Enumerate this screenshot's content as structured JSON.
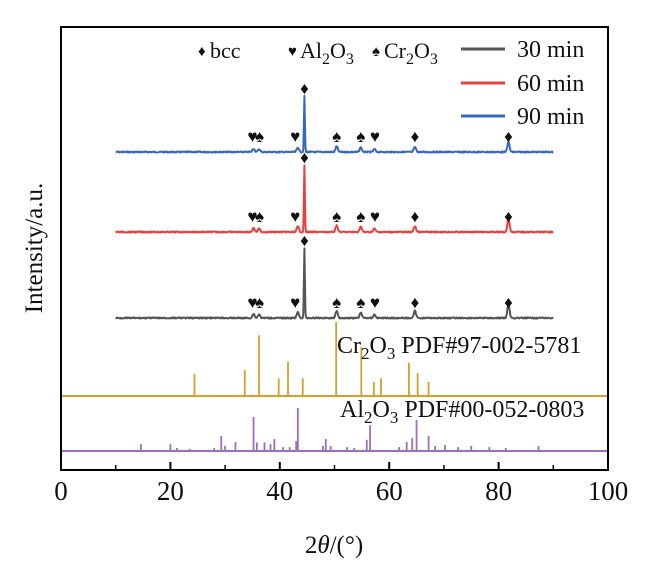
{
  "chart_data": {
    "type": "line",
    "title": "",
    "xlabel": "2θ/(°)",
    "ylabel": "Intensity/a.u.",
    "xlim": [
      0,
      100
    ],
    "xticks": [
      0,
      20,
      40,
      60,
      80,
      100
    ],
    "xminor_ticks": [
      10,
      30,
      50,
      70,
      90
    ],
    "yticks": [],
    "grid": false,
    "legend": {
      "placement": "top-right",
      "entries": [
        {
          "label": "30 min",
          "color": "#555555"
        },
        {
          "label": "60 min",
          "color": "#e8413d"
        },
        {
          "label": "90 min",
          "color": "#3569be"
        }
      ]
    },
    "phase_legend": [
      {
        "symbol": "♦",
        "label": "bcc"
      },
      {
        "symbol": "♥",
        "label": "Al",
        "sub": "2",
        "label2": "O",
        "sub2": "3"
      },
      {
        "symbol": "♠",
        "label": "Cr",
        "sub": "2",
        "label2": "O",
        "sub2": "3"
      }
    ],
    "series": [
      {
        "name": "90 min",
        "color": "#3569be",
        "x_range": [
          10,
          90
        ],
        "offset": 3,
        "peaks": [
          [
            35.2,
            0.06
          ],
          [
            36.2,
            0.05
          ],
          [
            43.3,
            0.08
          ],
          [
            44.5,
            1.0
          ],
          [
            50.4,
            0.1
          ],
          [
            54.8,
            0.08
          ],
          [
            57.3,
            0.05
          ],
          [
            64.7,
            0.09
          ],
          [
            81.8,
            0.18
          ]
        ],
        "markers": [
          {
            "x": 35.0,
            "symbol": "♥"
          },
          {
            "x": 36.3,
            "symbol": "♠"
          },
          {
            "x": 42.8,
            "symbol": "♥"
          },
          {
            "x": 44.5,
            "symbol": "♦",
            "top": true
          },
          {
            "x": 50.4,
            "symbol": "♠"
          },
          {
            "x": 54.8,
            "symbol": "♠"
          },
          {
            "x": 57.4,
            "symbol": "♥"
          },
          {
            "x": 64.7,
            "symbol": "♦"
          },
          {
            "x": 81.8,
            "symbol": "♦"
          }
        ]
      },
      {
        "name": "60 min",
        "color": "#e8413d",
        "x_range": [
          10,
          90
        ],
        "offset": 2,
        "peaks": [
          [
            35.2,
            0.06
          ],
          [
            36.2,
            0.05
          ],
          [
            43.3,
            0.08
          ],
          [
            44.5,
            1.0
          ],
          [
            50.4,
            0.1
          ],
          [
            54.8,
            0.08
          ],
          [
            57.3,
            0.05
          ],
          [
            64.7,
            0.09
          ],
          [
            81.8,
            0.2
          ]
        ],
        "markers": [
          {
            "x": 35.0,
            "symbol": "♥"
          },
          {
            "x": 36.3,
            "symbol": "♠"
          },
          {
            "x": 42.8,
            "symbol": "♥"
          },
          {
            "x": 44.5,
            "symbol": "♦",
            "top": true
          },
          {
            "x": 50.4,
            "symbol": "♠"
          },
          {
            "x": 54.8,
            "symbol": "♠"
          },
          {
            "x": 57.4,
            "symbol": "♥"
          },
          {
            "x": 64.7,
            "symbol": "♦"
          },
          {
            "x": 81.8,
            "symbol": "♦"
          }
        ]
      },
      {
        "name": "30 min",
        "color": "#555555",
        "x_range": [
          10,
          90
        ],
        "offset": 1,
        "peaks": [
          [
            35.2,
            0.06
          ],
          [
            36.2,
            0.05
          ],
          [
            43.3,
            0.08
          ],
          [
            44.5,
            1.0
          ],
          [
            50.4,
            0.1
          ],
          [
            54.8,
            0.08
          ],
          [
            57.3,
            0.05
          ],
          [
            64.7,
            0.1
          ],
          [
            81.8,
            0.2
          ]
        ],
        "markers": [
          {
            "x": 35.0,
            "symbol": "♥"
          },
          {
            "x": 36.3,
            "symbol": "♠"
          },
          {
            "x": 42.8,
            "symbol": "♥"
          },
          {
            "x": 44.5,
            "symbol": "♦",
            "top": true
          },
          {
            "x": 50.4,
            "symbol": "♠"
          },
          {
            "x": 54.8,
            "symbol": "♠"
          },
          {
            "x": 57.4,
            "symbol": "♥"
          },
          {
            "x": 64.7,
            "symbol": "♦"
          },
          {
            "x": 81.8,
            "symbol": "♦"
          }
        ]
      }
    ],
    "references": [
      {
        "name": "Cr2O3 PDF#97-002-5781",
        "label_parts": [
          "Cr",
          "2",
          "O",
          "3",
          " PDF#97-002-5781"
        ],
        "color": "#d4a02c",
        "lines": [
          [
            24.4,
            0.3
          ],
          [
            33.6,
            0.35
          ],
          [
            36.2,
            0.82
          ],
          [
            39.8,
            0.24
          ],
          [
            41.5,
            0.46
          ],
          [
            44.2,
            0.24
          ],
          [
            50.3,
            1.0
          ],
          [
            54.9,
            0.66
          ],
          [
            57.2,
            0.19
          ],
          [
            58.5,
            0.24
          ],
          [
            63.6,
            0.45
          ],
          [
            65.2,
            0.31
          ],
          [
            67.2,
            0.19
          ]
        ]
      },
      {
        "name": "Al2O3 PDF#00-052-0803",
        "label_parts": [
          "Al",
          "2",
          "O",
          "3",
          " PDF#00-052-0803"
        ],
        "color": "#9b6fc0",
        "lines": [
          [
            14.6,
            0.16
          ],
          [
            20.0,
            0.16
          ],
          [
            21.2,
            0.07
          ],
          [
            23.5,
            0.05
          ],
          [
            28.0,
            0.07
          ],
          [
            29.3,
            0.35
          ],
          [
            30.0,
            0.12
          ],
          [
            31.9,
            0.21
          ],
          [
            35.2,
            0.79
          ],
          [
            35.8,
            0.2
          ],
          [
            37.2,
            0.2
          ],
          [
            38.3,
            0.16
          ],
          [
            39.0,
            0.28
          ],
          [
            40.6,
            0.09
          ],
          [
            41.8,
            0.09
          ],
          [
            43.0,
            0.23
          ],
          [
            43.3,
            1.0
          ],
          [
            47.9,
            0.12
          ],
          [
            48.4,
            0.28
          ],
          [
            49.3,
            0.12
          ],
          [
            52.3,
            0.09
          ],
          [
            53.6,
            0.07
          ],
          [
            55.9,
            0.26
          ],
          [
            56.5,
            0.6
          ],
          [
            61.8,
            0.09
          ],
          [
            63.2,
            0.21
          ],
          [
            64.2,
            0.3
          ],
          [
            65.0,
            0.72
          ],
          [
            67.2,
            0.35
          ],
          [
            68.4,
            0.12
          ],
          [
            70.2,
            0.14
          ],
          [
            72.6,
            0.09
          ],
          [
            75.0,
            0.12
          ],
          [
            78.3,
            0.09
          ],
          [
            81.3,
            0.07
          ],
          [
            87.3,
            0.12
          ]
        ]
      }
    ]
  }
}
